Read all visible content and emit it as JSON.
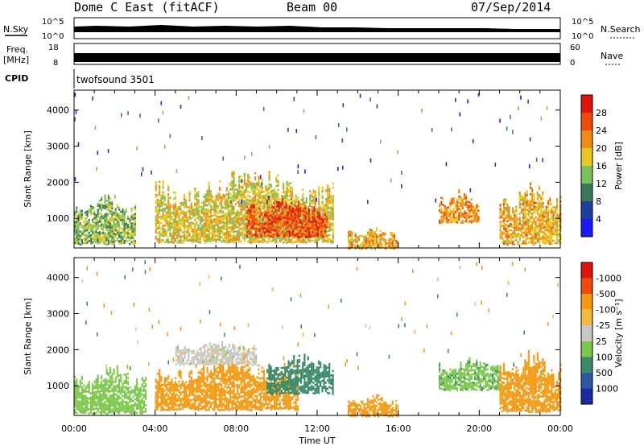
{
  "header": {
    "station": "Dome C East (fitACF)",
    "beam": "Beam 00",
    "date": "07/Sep/2014"
  },
  "panel_labels": {
    "nsky": "N.Sky",
    "nsearch": "N.Search",
    "freq_line1": "Freq.",
    "freq_line2": "[MHz]",
    "nave": "Nave",
    "cpid": "CPID",
    "cpid_value": "twofsound 3501",
    "noise_ticks_left": [
      "10^5",
      "10^0"
    ],
    "noise_ticks_right": [
      "10^5",
      "10^0"
    ],
    "freq_ticks_left": [
      "18",
      "8"
    ],
    "nave_ticks_right": [
      "60",
      "0"
    ]
  },
  "colors": {
    "power_scale": [
      "#1a1aff",
      "#1f3f9e",
      "#3a7a5a",
      "#7cc05a",
      "#e8c81e",
      "#f08c14",
      "#f04a0a",
      "#e0140a"
    ],
    "velocity_scale": [
      "#e0140a",
      "#f04a0a",
      "#f59a10",
      "#f5b840",
      "#c8c8c8",
      "#7cc84a",
      "#3a8a6a",
      "#2a5aa0",
      "#1a2aa0"
    ]
  },
  "chart_data": [
    {
      "type": "heatmap",
      "title": "Power",
      "xlabel": "Time UT",
      "ylabel": "Slant Range [km]",
      "x_range_hours": [
        0,
        24
      ],
      "y_range_km": [
        180,
        4550
      ],
      "x_ticks": [
        "00:00",
        "04:00",
        "08:00",
        "12:00",
        "16:00",
        "20:00",
        "00:00"
      ],
      "y_ticks": [
        1000,
        2000,
        3000,
        4000
      ],
      "colorbar": {
        "label": "Power [dB]",
        "tick_labels": [
          "4",
          "8",
          "12",
          "16",
          "20",
          "24",
          "28"
        ],
        "range": [
          0,
          32
        ]
      },
      "regions": [
        {
          "t_start": 0.0,
          "t_end": 3.0,
          "r_min": 300,
          "r_max": 1500,
          "value_dB": 14
        },
        {
          "t_start": 4.0,
          "t_end": 12.8,
          "r_min": 350,
          "r_max": 2200,
          "value_dB": 18
        },
        {
          "t_start": 8.5,
          "t_end": 12.5,
          "r_min": 500,
          "r_max": 1500,
          "value_dB": 26
        },
        {
          "t_start": 13.5,
          "t_end": 16.0,
          "r_min": 180,
          "r_max": 700,
          "value_dB": 20
        },
        {
          "t_start": 18.0,
          "t_end": 20.0,
          "r_min": 900,
          "r_max": 1700,
          "value_dB": 22
        },
        {
          "t_start": 21.0,
          "t_end": 24.0,
          "r_min": 300,
          "r_max": 1800,
          "value_dB": 20
        }
      ]
    },
    {
      "type": "heatmap",
      "title": "Velocity",
      "xlabel": "Time UT",
      "ylabel": "Slant Range [km]",
      "x_range_hours": [
        0,
        24
      ],
      "y_range_km": [
        180,
        4550
      ],
      "x_ticks": [
        "00:00",
        "04:00",
        "08:00",
        "12:00",
        "16:00",
        "20:00",
        "00:00"
      ],
      "y_ticks": [
        1000,
        2000,
        3000,
        4000
      ],
      "colorbar": {
        "label": "Velocity [m s⁻¹]",
        "tick_labels": [
          "1000",
          "500",
          "100",
          "25",
          "-25",
          "-100",
          "-500",
          "-1000"
        ]
      },
      "regions": [
        {
          "t_start": 0.0,
          "t_end": 3.5,
          "r_min": 250,
          "r_max": 1450,
          "value_ms": 70
        },
        {
          "t_start": 4.0,
          "t_end": 11.0,
          "r_min": 350,
          "r_max": 1650,
          "value_ms": -300
        },
        {
          "t_start": 5.0,
          "t_end": 9.0,
          "r_min": 1600,
          "r_max": 2200,
          "value_ms": 0
        },
        {
          "t_start": 9.5,
          "t_end": 12.8,
          "r_min": 800,
          "r_max": 1800,
          "value_ms": 300
        },
        {
          "t_start": 13.5,
          "t_end": 16.0,
          "r_min": 180,
          "r_max": 700,
          "value_ms": -150
        },
        {
          "t_start": 18.0,
          "t_end": 21.0,
          "r_min": 900,
          "r_max": 1700,
          "value_ms": 80
        },
        {
          "t_start": 21.0,
          "t_end": 24.0,
          "r_min": 300,
          "r_max": 1800,
          "value_ms": -300
        }
      ]
    }
  ]
}
